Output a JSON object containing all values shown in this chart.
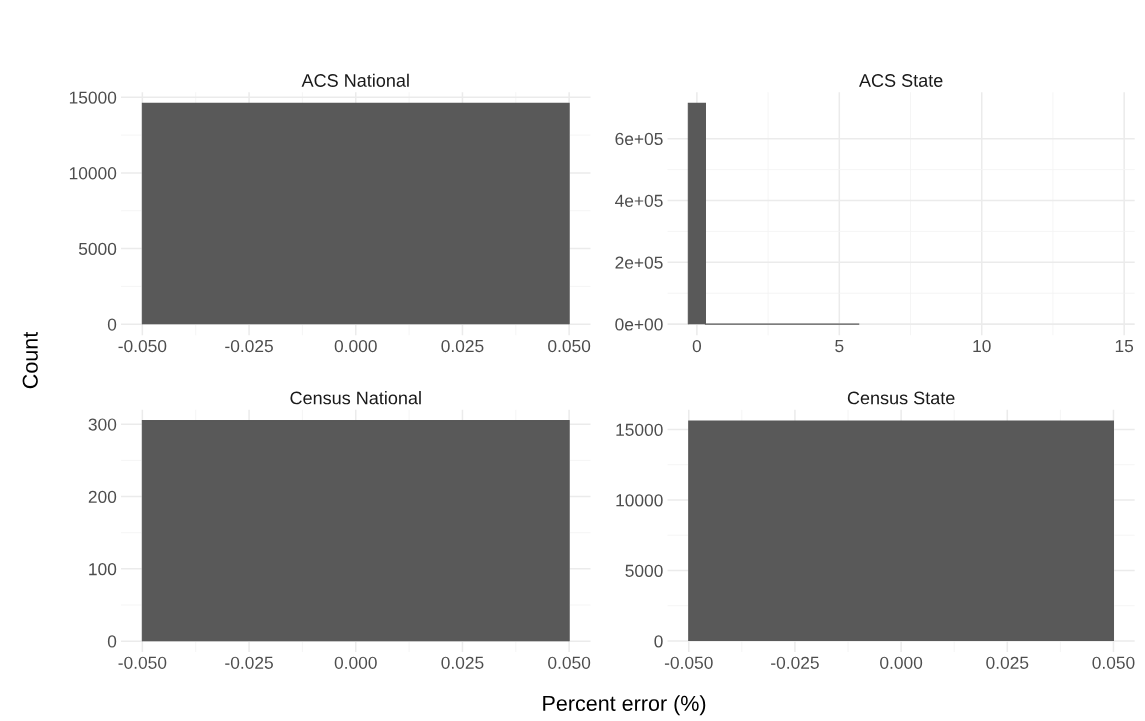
{
  "chart_data": [
    {
      "type": "histogram",
      "title": "ACS National",
      "xlabel": "Percent error (%)",
      "ylabel": "Count",
      "bins": [
        -0.05,
        0.05
      ],
      "values": [
        14600
      ],
      "color": "#595959",
      "xlim": [
        -0.055,
        0.055
      ],
      "xticks": [
        {
          "value": -0.05,
          "label": "-0.050"
        },
        {
          "value": -0.025,
          "label": "-0.025"
        },
        {
          "value": 0,
          "label": "0.000"
        },
        {
          "value": 0.025,
          "label": "0.025"
        },
        {
          "value": 0.05,
          "label": "0.050"
        }
      ],
      "ylim": [
        -730,
        15330
      ],
      "yticks": [
        0,
        5000,
        10000,
        15000
      ],
      "grid": true
    },
    {
      "type": "histogram",
      "title": "ACS State",
      "bins": [
        -0.3,
        0.3,
        0.9,
        1.5,
        2.1,
        2.7,
        3.3,
        3.9,
        4.5,
        5.1,
        5.7
      ],
      "values": [
        714000,
        0,
        0,
        0,
        0,
        0,
        0,
        0,
        0,
        0
      ],
      "color": "#595959",
      "xlim": [
        -1.03,
        15.37
      ],
      "xticks": [
        0,
        5,
        10,
        15
      ],
      "ylim": [
        -36000,
        750000
      ],
      "yticks": [
        {
          "value": 0,
          "label": "0e+00"
        },
        {
          "value": 200000,
          "label": "2e+05"
        },
        {
          "value": 400000,
          "label": "4e+05"
        },
        {
          "value": 600000,
          "label": "6e+05"
        }
      ],
      "grid": true
    },
    {
      "type": "histogram",
      "title": "Census National",
      "bins": [
        -0.05,
        0.05
      ],
      "values": [
        305
      ],
      "color": "#595959",
      "xlim": [
        -0.055,
        0.055
      ],
      "xticks": [
        {
          "value": -0.05,
          "label": "-0.050"
        },
        {
          "value": -0.025,
          "label": "-0.025"
        },
        {
          "value": 0,
          "label": "0.000"
        },
        {
          "value": 0.025,
          "label": "0.025"
        },
        {
          "value": 0.05,
          "label": "0.050"
        }
      ],
      "ylim": [
        -15,
        320
      ],
      "yticks": [
        0,
        100,
        200,
        300
      ],
      "grid": true
    },
    {
      "type": "histogram",
      "title": "Census State",
      "bins": [
        -0.05,
        0.05
      ],
      "values": [
        15600
      ],
      "color": "#595959",
      "xlim": [
        -0.055,
        0.055
      ],
      "xticks": [
        {
          "value": -0.05,
          "label": "-0.050"
        },
        {
          "value": -0.025,
          "label": "-0.025"
        },
        {
          "value": 0,
          "label": "0.000"
        },
        {
          "value": 0.025,
          "label": "0.025"
        },
        {
          "value": 0.05,
          "label": "0.050"
        }
      ],
      "ylim": [
        -780,
        16400
      ],
      "yticks": [
        0,
        5000,
        10000,
        15000
      ],
      "grid": true
    }
  ]
}
